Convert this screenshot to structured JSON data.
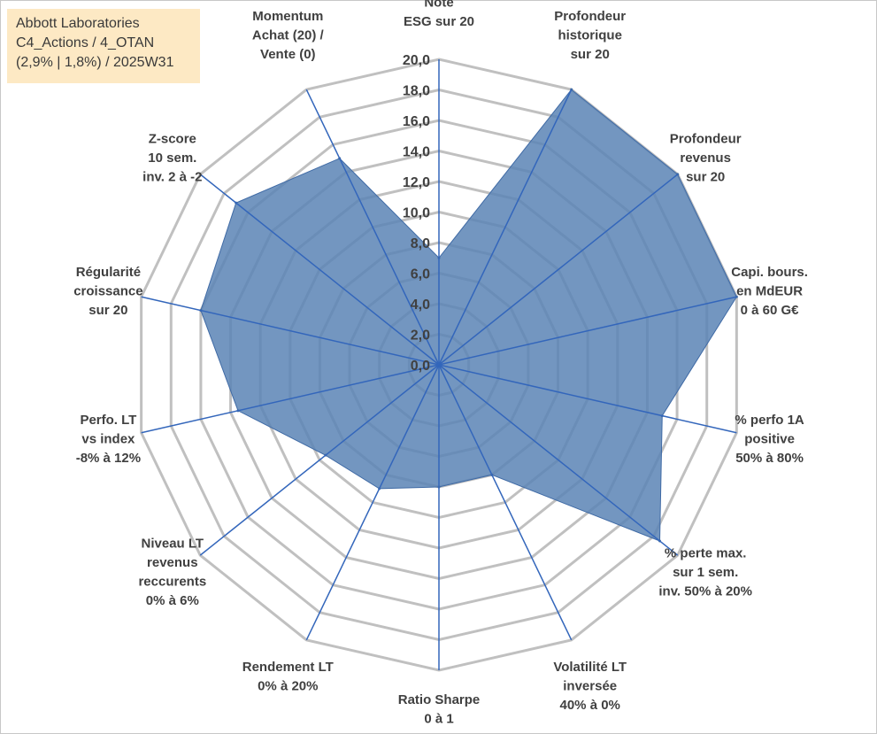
{
  "title_box": {
    "line1": "Abbott Laboratories",
    "line2": "C4_Actions / 4_OTAN",
    "line3": "(2,9% | 1,8%) / 2025W31"
  },
  "colors": {
    "fill": "#5b84b5",
    "stroke": "#3f6aa5",
    "spoke": "#3366bb",
    "grid": "#c0c0c0",
    "title_bg": "#fde9c4"
  },
  "chart_data": {
    "type": "radar",
    "title": "",
    "rmin": 0,
    "rmax": 20,
    "tick_step": 2,
    "tick_labels": [
      "0,0",
      "2,0",
      "4,0",
      "6,0",
      "8,0",
      "10,0",
      "12,0",
      "14,0",
      "16,0",
      "18,0",
      "20,0"
    ],
    "axes": [
      {
        "label": [
          "Note",
          "ESG sur 20"
        ],
        "value": 7.0
      },
      {
        "label": [
          "Profondeur",
          "historique",
          "sur 20"
        ],
        "value": 20.0
      },
      {
        "label": [
          "Profondeur",
          "revenus",
          "sur 20"
        ],
        "value": 20.0
      },
      {
        "label": [
          "Capi. bours.",
          "en MdEUR",
          "0 à 60 G€"
        ],
        "value": 20.0
      },
      {
        "label": [
          "% perfo 1A",
          "positive",
          "50% à 80%"
        ],
        "value": 15.0
      },
      {
        "label": [
          "% perte max.",
          "sur 1 sem.",
          "inv. 50% à 20%"
        ],
        "value": 18.5
      },
      {
        "label": [
          "Volatilité LT",
          "inversée",
          "40% à 0%"
        ],
        "value": 8.0
      },
      {
        "label": [
          "Ratio Sharpe",
          "0 à 1"
        ],
        "value": 8.0
      },
      {
        "label": [
          "Rendement LT",
          "0% à 20%"
        ],
        "value": 9.0
      },
      {
        "label": [
          "Niveau LT",
          "revenus",
          "reccurents",
          "0% à 6%"
        ],
        "value": 9.5
      },
      {
        "label": [
          "Perfo. LT",
          "vs index",
          "-8% à 12%"
        ],
        "value": 13.5
      },
      {
        "label": [
          "Régularité",
          "croissance",
          "sur 20"
        ],
        "value": 16.0
      },
      {
        "label": [
          "Z-score",
          "10 sem.",
          "inv. 2 à -2"
        ],
        "value": 17.0
      },
      {
        "label": [
          "Momentum",
          "Achat (20) /",
          "Vente (0)"
        ],
        "value": 15.0
      }
    ],
    "grid": true,
    "legend": "none"
  }
}
